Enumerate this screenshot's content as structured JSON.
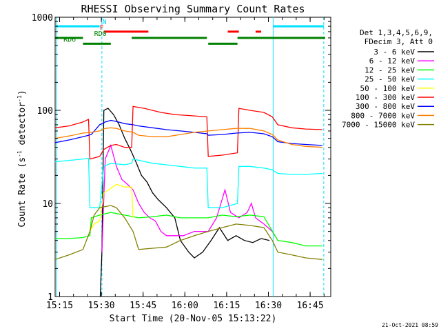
{
  "chart_data": {
    "type": "line",
    "title": "RHESSI Observing Summary Count Rates",
    "xlabel": "Start Time (20-Nov-05 15:13:22)",
    "ylabel_main": "Count Rate (s",
    "ylabel_sup1": "-1",
    "ylabel_mid": " detector",
    "ylabel_sup2": "-1",
    "ylabel_end": ")",
    "x_unit": "minutes since 15:13:22",
    "xlim": [
      0,
      99
    ],
    "ylog": true,
    "ylim": [
      1,
      1000
    ],
    "x_ticks": [
      {
        "label": "15:15",
        "x": 1.6
      },
      {
        "label": "15:30",
        "x": 16.6
      },
      {
        "label": "15:45",
        "x": 31.6
      },
      {
        "label": "16:00",
        "x": 46.6
      },
      {
        "label": "16:15",
        "x": 61.6
      },
      {
        "label": "16:30",
        "x": 76.6
      },
      {
        "label": "16:45",
        "x": 91.6
      }
    ],
    "y_ticks": [
      {
        "label": "1000",
        "y": 1000
      },
      {
        "label": "100",
        "y": 100
      },
      {
        "label": "10",
        "y": 10
      },
      {
        "label": "1",
        "y": 1
      }
    ],
    "legend_header": [
      "Det 1,3,4,5,6,9,",
      "FDecim 3, Att 0"
    ],
    "legend_placement": "right",
    "timestamp": "21-Oct-2021 08:59",
    "vlines_solid": [
      0.5,
      78.3
    ],
    "vlines_dashed": [
      16.8,
      96.5
    ],
    "bars": [
      {
        "label": "N",
        "color": "#00e0ff",
        "y": 800,
        "segments": [
          [
            0,
            16
          ],
          [
            78.3,
            96.5
          ]
        ]
      },
      {
        "label": "F",
        "color": "#ff0000",
        "y": 700,
        "segments": [
          [
            17.5,
            33.5
          ],
          [
            62,
            66
          ],
          [
            72,
            74
          ]
        ]
      },
      {
        "label": "RD0",
        "color": "#008000",
        "y": 600,
        "segments": [
          [
            0,
            10
          ],
          [
            27.5,
            54.5
          ],
          [
            65.5,
            97
          ]
        ]
      },
      {
        "label": "RD6",
        "color": "#008000",
        "y": 520,
        "segments": [
          [
            10,
            20
          ],
          [
            55,
            65.5
          ]
        ]
      }
    ],
    "series": [
      {
        "name": "3 - 6 keV",
        "color": "#000000",
        "points": [
          [
            16.2,
            1
          ],
          [
            16.8,
            3
          ],
          [
            17.5,
            100
          ],
          [
            19,
            105
          ],
          [
            21,
            90
          ],
          [
            23,
            70
          ],
          [
            25,
            50
          ],
          [
            27,
            38
          ],
          [
            29,
            28
          ],
          [
            31,
            20
          ],
          [
            33,
            17
          ],
          [
            35,
            13
          ],
          [
            37,
            11
          ],
          [
            40,
            9
          ],
          [
            43,
            7
          ],
          [
            45,
            4
          ],
          [
            48,
            3
          ],
          [
            50,
            2.6
          ],
          [
            53,
            3
          ],
          [
            56,
            4
          ],
          [
            59,
            5.5
          ],
          [
            62,
            4
          ],
          [
            65,
            4.5
          ],
          [
            68,
            4
          ],
          [
            71,
            3.8
          ],
          [
            74,
            4.2
          ],
          [
            77,
            4
          ]
        ]
      },
      {
        "name": "6 - 12 keV",
        "color": "#ff00ff",
        "points": [
          [
            16.8,
            3
          ],
          [
            18,
            30
          ],
          [
            20,
            42
          ],
          [
            22,
            25
          ],
          [
            24,
            18
          ],
          [
            26,
            16
          ],
          [
            28,
            14
          ],
          [
            30,
            10
          ],
          [
            32,
            8
          ],
          [
            34,
            7
          ],
          [
            36,
            6.5
          ],
          [
            38,
            5
          ],
          [
            40,
            4.5
          ],
          [
            43,
            4.5
          ],
          [
            46,
            4.5
          ],
          [
            50,
            5
          ],
          [
            55,
            5
          ],
          [
            58,
            7
          ],
          [
            61,
            14
          ],
          [
            63,
            8
          ],
          [
            66,
            7
          ],
          [
            69,
            8
          ],
          [
            70.5,
            10
          ],
          [
            72,
            7
          ],
          [
            75,
            6
          ],
          [
            78,
            5
          ],
          [
            80,
            4
          ]
        ]
      },
      {
        "name": "12 - 25 keV",
        "color": "#00ff00",
        "points": [
          [
            0,
            4.2
          ],
          [
            5,
            4.2
          ],
          [
            10,
            4.3
          ],
          [
            12.5,
            4.5
          ],
          [
            13,
            7
          ],
          [
            16,
            7.5
          ],
          [
            20,
            8
          ],
          [
            25,
            7.5
          ],
          [
            30,
            7
          ],
          [
            35,
            7.2
          ],
          [
            40,
            7.5
          ],
          [
            45,
            7
          ],
          [
            50,
            7
          ],
          [
            55,
            7
          ],
          [
            60,
            7.5
          ],
          [
            65,
            7.2
          ],
          [
            70,
            7.5
          ],
          [
            75,
            7.2
          ],
          [
            80,
            4
          ],
          [
            85,
            3.8
          ],
          [
            90,
            3.5
          ],
          [
            96,
            3.5
          ]
        ]
      },
      {
        "name": "25 - 50 keV",
        "color": "#00ffff",
        "points": [
          [
            0,
            28
          ],
          [
            5,
            29
          ],
          [
            10,
            30
          ],
          [
            12,
            30.5
          ],
          [
            12.5,
            9
          ],
          [
            16,
            9
          ],
          [
            17.5,
            25
          ],
          [
            20,
            27
          ],
          [
            25,
            26
          ],
          [
            27.5,
            27
          ],
          [
            28,
            30
          ],
          [
            35,
            27
          ],
          [
            40,
            26
          ],
          [
            45,
            25
          ],
          [
            50,
            24
          ],
          [
            54.5,
            24
          ],
          [
            55,
            9
          ],
          [
            60,
            9
          ],
          [
            65.5,
            10
          ],
          [
            66,
            25
          ],
          [
            70,
            25
          ],
          [
            75,
            24
          ],
          [
            78,
            23
          ],
          [
            80,
            21
          ],
          [
            85,
            20.5
          ],
          [
            90,
            20.5
          ],
          [
            96,
            21
          ]
        ]
      },
      {
        "name": "50 - 100 keV",
        "color": "#ffff00",
        "points": [
          [
            12.5,
            5
          ],
          [
            14,
            6
          ],
          [
            16,
            6.5
          ],
          [
            17.5,
            13
          ],
          [
            20,
            14.5
          ],
          [
            22,
            16
          ],
          [
            25,
            15
          ],
          [
            27.5,
            15
          ],
          [
            28,
            7
          ]
        ]
      },
      {
        "name": "100 - 300 keV",
        "color": "#ff0000",
        "points": [
          [
            0,
            65
          ],
          [
            5,
            68
          ],
          [
            10,
            75
          ],
          [
            12,
            80
          ],
          [
            12.5,
            30
          ],
          [
            16,
            32
          ],
          [
            17.5,
            38
          ],
          [
            20,
            42
          ],
          [
            22,
            43
          ],
          [
            25,
            40
          ],
          [
            27.5,
            40
          ],
          [
            28,
            110
          ],
          [
            32,
            105
          ],
          [
            38,
            95
          ],
          [
            43,
            90
          ],
          [
            48,
            88
          ],
          [
            54.5,
            85
          ],
          [
            55,
            32
          ],
          [
            60,
            33
          ],
          [
            65.5,
            35
          ],
          [
            66,
            105
          ],
          [
            70,
            100
          ],
          [
            75,
            95
          ],
          [
            78,
            85
          ],
          [
            80,
            70
          ],
          [
            85,
            65
          ],
          [
            90,
            63
          ],
          [
            96,
            62
          ]
        ]
      },
      {
        "name": "300 - 800 keV",
        "color": "#0000ff",
        "points": [
          [
            0,
            45
          ],
          [
            5,
            48
          ],
          [
            10,
            52
          ],
          [
            13,
            55
          ],
          [
            16,
            70
          ],
          [
            18,
            75
          ],
          [
            20,
            78
          ],
          [
            22,
            76
          ],
          [
            25,
            72
          ],
          [
            28,
            70
          ],
          [
            30,
            68
          ],
          [
            35,
            65
          ],
          [
            40,
            62
          ],
          [
            45,
            60
          ],
          [
            50,
            58
          ],
          [
            54.5,
            56
          ],
          [
            55,
            54
          ],
          [
            60,
            55
          ],
          [
            65,
            57
          ],
          [
            70,
            58
          ],
          [
            75,
            56
          ],
          [
            78,
            52
          ],
          [
            80,
            46
          ],
          [
            85,
            44
          ],
          [
            90,
            43
          ],
          [
            96,
            42
          ]
        ]
      },
      {
        "name": "800 - 7000 keV",
        "color": "#ff8000",
        "points": [
          [
            0,
            50
          ],
          [
            5,
            53
          ],
          [
            10,
            57
          ],
          [
            13,
            58
          ],
          [
            16,
            60
          ],
          [
            18,
            64
          ],
          [
            20,
            65
          ],
          [
            22,
            64
          ],
          [
            25,
            60
          ],
          [
            28,
            58
          ],
          [
            30,
            54
          ],
          [
            35,
            52
          ],
          [
            40,
            52
          ],
          [
            45,
            55
          ],
          [
            50,
            58
          ],
          [
            55,
            60
          ],
          [
            60,
            62
          ],
          [
            65,
            64
          ],
          [
            70,
            64
          ],
          [
            75,
            60
          ],
          [
            78,
            55
          ],
          [
            80,
            48
          ],
          [
            85,
            43
          ],
          [
            90,
            41
          ],
          [
            96,
            40
          ]
        ]
      },
      {
        "name": "7000 - 15000 keV",
        "color": "#808000",
        "points": [
          [
            0,
            2.5
          ],
          [
            5,
            2.8
          ],
          [
            10,
            3.2
          ],
          [
            12.5,
            5
          ],
          [
            14,
            7.5
          ],
          [
            16,
            9
          ],
          [
            20,
            9.5
          ],
          [
            22,
            9
          ],
          [
            25,
            7
          ],
          [
            28,
            5
          ],
          [
            30,
            3.2
          ],
          [
            35,
            3.3
          ],
          [
            40,
            3.4
          ],
          [
            45,
            4
          ],
          [
            50,
            4.5
          ],
          [
            55,
            5
          ],
          [
            60,
            5.5
          ],
          [
            65,
            6
          ],
          [
            70,
            5.8
          ],
          [
            75,
            5.5
          ],
          [
            78,
            4
          ],
          [
            80,
            3
          ],
          [
            85,
            2.8
          ],
          [
            90,
            2.6
          ],
          [
            96,
            2.5
          ]
        ]
      }
    ]
  }
}
